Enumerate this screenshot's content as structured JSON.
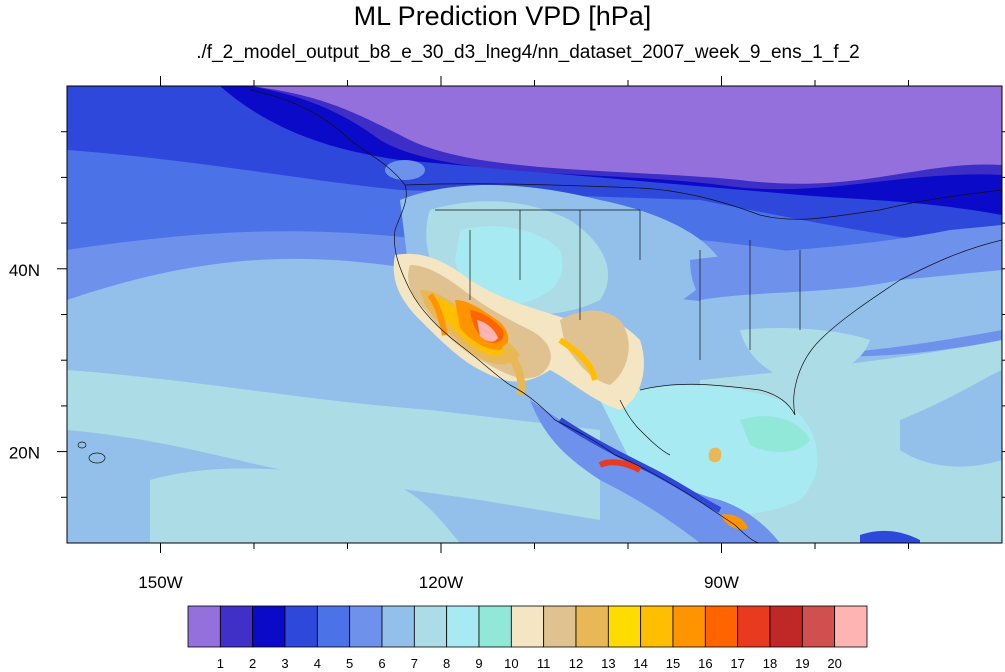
{
  "title": "ML Prediction VPD [hPa]",
  "subtitle": "./f_2_model_output_b8_e_30_d3_lneg4/nn_dataset_2007_week_9_ens_1_f_2",
  "map": {
    "projection": "cylindrical-equidistant",
    "lon_range": [
      -160,
      -60
    ],
    "lat_range": [
      10,
      60
    ],
    "lon_ticks": [
      {
        "value": -150,
        "label": "150W"
      },
      {
        "value": -120,
        "label": "120W"
      },
      {
        "value": -90,
        "label": "90W"
      }
    ],
    "lat_ticks": [
      {
        "value": 40,
        "label": "40N"
      },
      {
        "value": 20,
        "label": "20N"
      }
    ],
    "minor_lon_step": 10,
    "minor_lat_step": 5
  },
  "colorbar": {
    "levels": [
      "1",
      "2",
      "3",
      "4",
      "5",
      "6",
      "7",
      "8",
      "9",
      "10",
      "11",
      "12",
      "13",
      "14",
      "15",
      "16",
      "17",
      "18",
      "19",
      "20"
    ],
    "colors": [
      "#9370db",
      "#4030c8",
      "#0a0ac8",
      "#2e48dc",
      "#4c72e8",
      "#6e92ec",
      "#92c0ea",
      "#acdce6",
      "#a8eaf2",
      "#92e8d8",
      "#f4e6c2",
      "#e0c290",
      "#e8b856",
      "#ffdc00",
      "#ffbe00",
      "#ff9400",
      "#ff6400",
      "#e83a1e",
      "#c02828",
      "#d05050",
      "#ffb4b4"
    ]
  }
}
